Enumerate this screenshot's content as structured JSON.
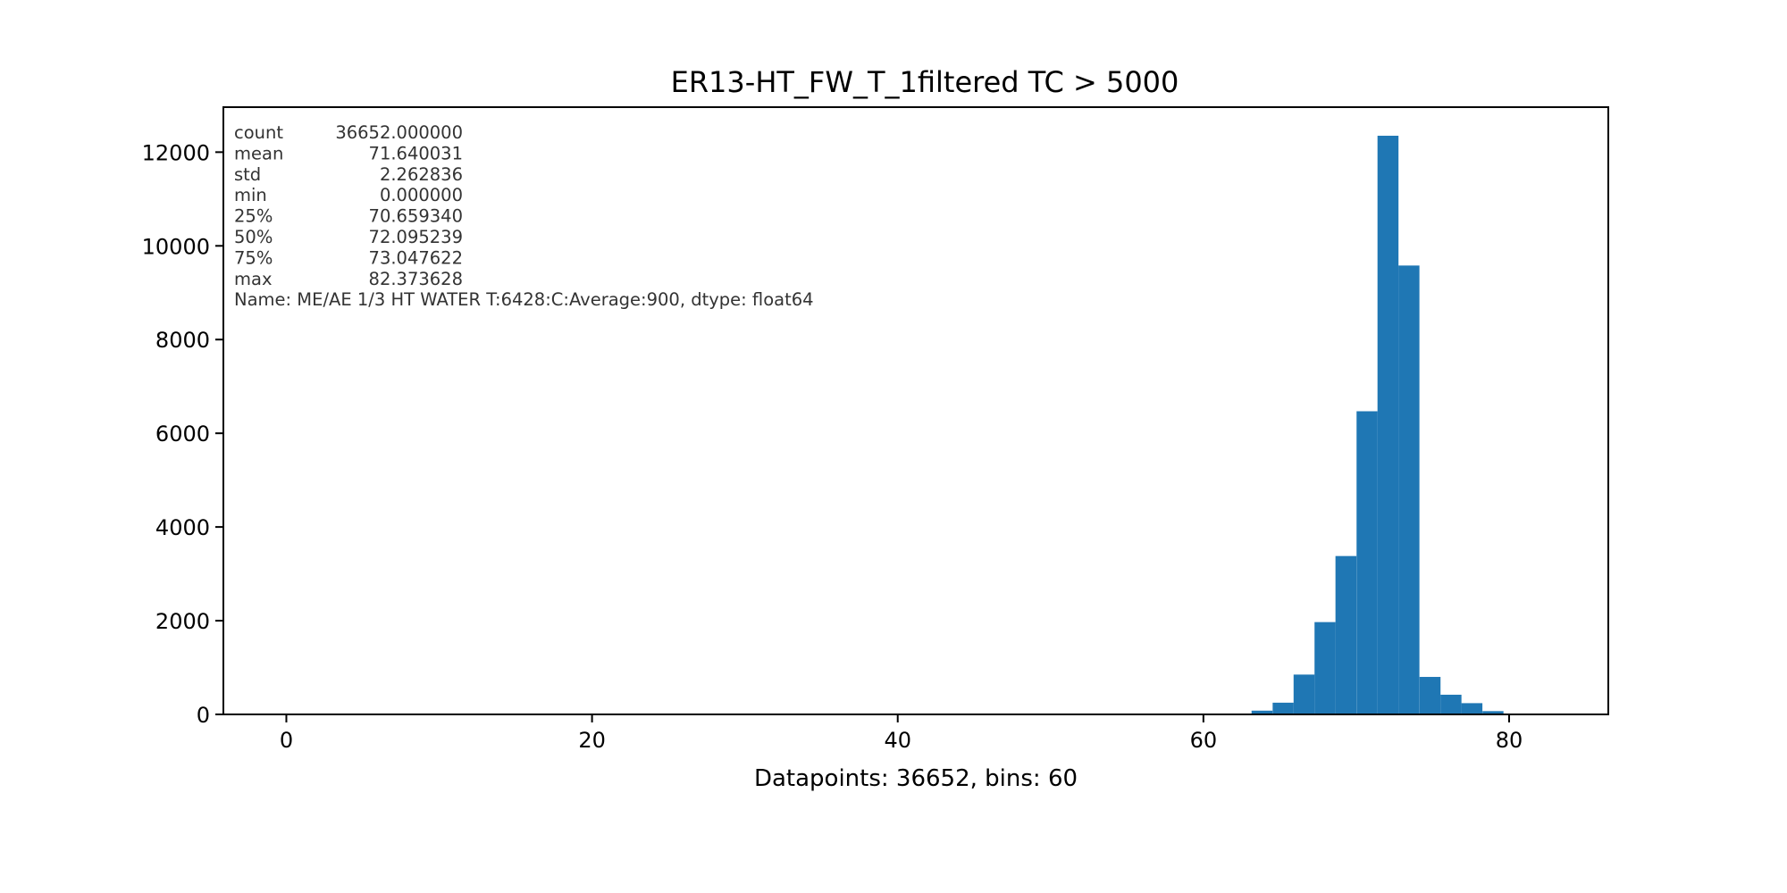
{
  "chart_data": {
    "type": "bar",
    "title": "ER13-HT_FW_T_1filtered TC > 5000",
    "xlabel": "Datapoints: 36652, bins: 60",
    "ylabel": "",
    "xlim": [
      -4.12,
      86.49
    ],
    "ylim": [
      0,
      12960
    ],
    "x_ticks": [
      0,
      20,
      40,
      60,
      80
    ],
    "y_ticks": [
      0,
      2000,
      4000,
      6000,
      8000,
      10000,
      12000
    ],
    "grid": false,
    "bar_color": "#1f77b4",
    "bin_width": 1.3729,
    "bins": [
      {
        "x0": 63.15,
        "count": 80
      },
      {
        "x0": 64.53,
        "count": 250
      },
      {
        "x0": 65.9,
        "count": 850
      },
      {
        "x0": 67.27,
        "count": 1970
      },
      {
        "x0": 68.64,
        "count": 3380
      },
      {
        "x0": 70.02,
        "count": 6470
      },
      {
        "x0": 71.39,
        "count": 12350
      },
      {
        "x0": 72.76,
        "count": 9580
      },
      {
        "x0": 74.14,
        "count": 800
      },
      {
        "x0": 75.51,
        "count": 420
      },
      {
        "x0": 76.88,
        "count": 240
      },
      {
        "x0": 78.26,
        "count": 70
      },
      {
        "x0": 79.63,
        "count": 15
      }
    ],
    "annotation_lines": [
      [
        "count",
        "36652.000000"
      ],
      [
        "mean",
        "71.640031"
      ],
      [
        "std",
        "2.262836"
      ],
      [
        "min",
        "0.000000"
      ],
      [
        "25%",
        "70.659340"
      ],
      [
        "50%",
        "72.095239"
      ],
      [
        "75%",
        "73.047622"
      ],
      [
        "max",
        "82.373628"
      ]
    ],
    "annotation_footer": "Name: ME/AE 1/3 HT WATER T:6428:C:Average:900, dtype: float64"
  }
}
